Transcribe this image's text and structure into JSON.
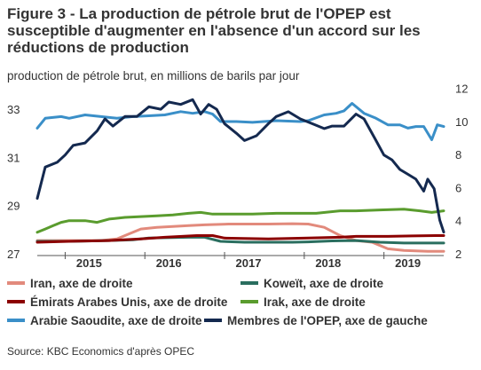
{
  "title": "Figure 3 - La production de pétrole brut de l'OPEP est susceptible d'augmenter en l'absence d'un accord sur les réductions de production",
  "subtitle": "production de pétrole brut, en millions de barils par jour",
  "source": "Source: KBC Economics d'après OPEC",
  "chart_data": {
    "type": "line",
    "x_range": [
      2014.6,
      2019.7
    ],
    "x_ticks": [
      {
        "label": "2015",
        "value": 2015.0
      },
      {
        "label": "2016",
        "value": 2016.0
      },
      {
        "label": "2017",
        "value": 2017.0
      },
      {
        "label": "2018",
        "value": 2018.0
      },
      {
        "label": "2019",
        "value": 2019.0
      }
    ],
    "y_left": {
      "ticks": [
        "27",
        "29",
        "31",
        "33"
      ],
      "ylim": [
        27,
        34
      ]
    },
    "y_right": {
      "ticks": [
        "2",
        "4",
        "6",
        "8",
        "10",
        "12"
      ],
      "ylim": [
        2,
        12.2
      ]
    },
    "series": [
      {
        "name": "Iran, axe de droite",
        "axis": "right",
        "color": "#e28a7c",
        "points": [
          [
            2014.6,
            2.8
          ],
          [
            2015.0,
            2.8
          ],
          [
            2015.4,
            2.8
          ],
          [
            2015.6,
            2.9
          ],
          [
            2015.75,
            3.2
          ],
          [
            2015.9,
            3.5
          ],
          [
            2016.1,
            3.6
          ],
          [
            2016.3,
            3.65
          ],
          [
            2016.5,
            3.7
          ],
          [
            2016.7,
            3.75
          ],
          [
            2017.0,
            3.8
          ],
          [
            2017.5,
            3.8
          ],
          [
            2017.8,
            3.82
          ],
          [
            2018.0,
            3.8
          ],
          [
            2018.2,
            3.6
          ],
          [
            2018.4,
            3.1
          ],
          [
            2018.6,
            2.8
          ],
          [
            2018.8,
            2.7
          ],
          [
            2019.0,
            2.3
          ],
          [
            2019.2,
            2.2
          ],
          [
            2019.5,
            2.15
          ],
          [
            2019.7,
            2.15
          ]
        ]
      },
      {
        "name": "Koweït, axe de droite",
        "axis": "right",
        "color": "#2a6e5f",
        "points": [
          [
            2014.6,
            2.75
          ],
          [
            2015.0,
            2.75
          ],
          [
            2015.5,
            2.8
          ],
          [
            2015.8,
            2.85
          ],
          [
            2016.0,
            2.95
          ],
          [
            2016.5,
            3.0
          ],
          [
            2016.7,
            3.0
          ],
          [
            2016.9,
            2.75
          ],
          [
            2017.2,
            2.7
          ],
          [
            2017.8,
            2.7
          ],
          [
            2018.0,
            2.72
          ],
          [
            2018.3,
            2.78
          ],
          [
            2018.6,
            2.8
          ],
          [
            2018.9,
            2.7
          ],
          [
            2019.2,
            2.65
          ],
          [
            2019.5,
            2.65
          ],
          [
            2019.7,
            2.65
          ]
        ]
      },
      {
        "name": "Émirats Arabes Unis, axe de droite",
        "axis": "right",
        "color": "#8b0000",
        "points": [
          [
            2014.6,
            2.7
          ],
          [
            2015.0,
            2.75
          ],
          [
            2015.5,
            2.8
          ],
          [
            2015.9,
            2.9
          ],
          [
            2016.2,
            3.0
          ],
          [
            2016.6,
            3.1
          ],
          [
            2016.8,
            3.1
          ],
          [
            2016.95,
            2.95
          ],
          [
            2017.5,
            2.9
          ],
          [
            2018.0,
            2.95
          ],
          [
            2018.4,
            3.0
          ],
          [
            2018.6,
            3.05
          ],
          [
            2018.8,
            3.05
          ],
          [
            2019.0,
            3.05
          ],
          [
            2019.3,
            3.08
          ],
          [
            2019.6,
            3.1
          ],
          [
            2019.7,
            3.1
          ]
        ]
      },
      {
        "name": "Irak, axe de droite",
        "axis": "right",
        "color": "#5a9c2e",
        "points": [
          [
            2014.6,
            3.3
          ],
          [
            2014.7,
            3.5
          ],
          [
            2014.8,
            3.7
          ],
          [
            2014.9,
            3.9
          ],
          [
            2015.0,
            4.0
          ],
          [
            2015.2,
            4.0
          ],
          [
            2015.35,
            3.9
          ],
          [
            2015.5,
            4.1
          ],
          [
            2015.7,
            4.2
          ],
          [
            2015.9,
            4.25
          ],
          [
            2016.1,
            4.3
          ],
          [
            2016.3,
            4.35
          ],
          [
            2016.5,
            4.45
          ],
          [
            2016.65,
            4.5
          ],
          [
            2016.8,
            4.4
          ],
          [
            2017.0,
            4.4
          ],
          [
            2017.3,
            4.4
          ],
          [
            2017.6,
            4.45
          ],
          [
            2017.9,
            4.45
          ],
          [
            2018.1,
            4.45
          ],
          [
            2018.4,
            4.6
          ],
          [
            2018.6,
            4.6
          ],
          [
            2018.9,
            4.65
          ],
          [
            2019.2,
            4.7
          ],
          [
            2019.4,
            4.6
          ],
          [
            2019.55,
            4.5
          ],
          [
            2019.7,
            4.6
          ]
        ]
      },
      {
        "name": "Arabie Saoudite, axe de droite",
        "axis": "right",
        "color": "#3a8fc8",
        "points": [
          [
            2014.6,
            9.6
          ],
          [
            2014.7,
            10.2
          ],
          [
            2014.9,
            10.3
          ],
          [
            2015.0,
            10.2
          ],
          [
            2015.2,
            10.4
          ],
          [
            2015.4,
            10.3
          ],
          [
            2015.6,
            10.2
          ],
          [
            2015.8,
            10.3
          ],
          [
            2016.0,
            10.35
          ],
          [
            2016.2,
            10.4
          ],
          [
            2016.4,
            10.6
          ],
          [
            2016.55,
            10.5
          ],
          [
            2016.7,
            10.6
          ],
          [
            2016.8,
            10.45
          ],
          [
            2016.9,
            10.0
          ],
          [
            2017.1,
            10.0
          ],
          [
            2017.3,
            9.95
          ],
          [
            2017.6,
            10.05
          ],
          [
            2017.9,
            10.0
          ],
          [
            2018.0,
            10.05
          ],
          [
            2018.2,
            10.4
          ],
          [
            2018.35,
            10.5
          ],
          [
            2018.45,
            10.65
          ],
          [
            2018.55,
            11.1
          ],
          [
            2018.7,
            10.5
          ],
          [
            2018.85,
            10.2
          ],
          [
            2019.0,
            9.8
          ],
          [
            2019.15,
            9.8
          ],
          [
            2019.25,
            9.6
          ],
          [
            2019.35,
            9.7
          ],
          [
            2019.45,
            9.7
          ],
          [
            2019.55,
            8.9
          ],
          [
            2019.62,
            9.8
          ],
          [
            2019.7,
            9.7
          ]
        ]
      },
      {
        "name": "Membres de l'OPEP, axe de gauche",
        "axis": "left",
        "color": "#14294f",
        "points": [
          [
            2014.6,
            29.3
          ],
          [
            2014.7,
            30.6
          ],
          [
            2014.85,
            30.8
          ],
          [
            2014.95,
            31.1
          ],
          [
            2015.05,
            31.5
          ],
          [
            2015.2,
            31.6
          ],
          [
            2015.35,
            32.1
          ],
          [
            2015.45,
            32.6
          ],
          [
            2015.55,
            32.3
          ],
          [
            2015.7,
            32.7
          ],
          [
            2015.85,
            32.7
          ],
          [
            2016.0,
            33.1
          ],
          [
            2016.15,
            33.0
          ],
          [
            2016.25,
            33.3
          ],
          [
            2016.4,
            33.2
          ],
          [
            2016.55,
            33.4
          ],
          [
            2016.65,
            32.8
          ],
          [
            2016.75,
            33.2
          ],
          [
            2016.85,
            33.0
          ],
          [
            2016.95,
            32.4
          ],
          [
            2017.1,
            32.0
          ],
          [
            2017.2,
            31.7
          ],
          [
            2017.35,
            31.9
          ],
          [
            2017.5,
            32.4
          ],
          [
            2017.6,
            32.7
          ],
          [
            2017.75,
            32.9
          ],
          [
            2017.9,
            32.6
          ],
          [
            2018.05,
            32.4
          ],
          [
            2018.2,
            32.2
          ],
          [
            2018.3,
            32.3
          ],
          [
            2018.45,
            32.3
          ],
          [
            2018.6,
            32.8
          ],
          [
            2018.7,
            32.6
          ],
          [
            2018.85,
            31.7
          ],
          [
            2018.95,
            31.1
          ],
          [
            2019.05,
            30.9
          ],
          [
            2019.15,
            30.5
          ],
          [
            2019.25,
            30.3
          ],
          [
            2019.35,
            30.1
          ],
          [
            2019.45,
            29.6
          ],
          [
            2019.5,
            30.1
          ],
          [
            2019.58,
            29.7
          ],
          [
            2019.65,
            28.4
          ],
          [
            2019.7,
            27.9
          ]
        ]
      }
    ],
    "grid": false,
    "legend_position": "bottom"
  }
}
